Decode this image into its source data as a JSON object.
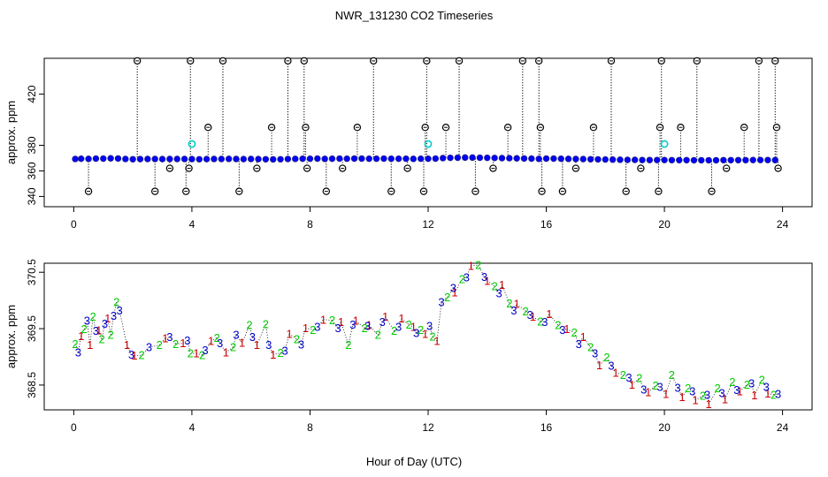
{
  "chart_data": [
    {
      "type": "scatter",
      "title": "NWR_131230  CO2 Timeseries",
      "xlabel": "",
      "ylabel": "approx. ppm",
      "xlim": [
        -1,
        25
      ],
      "ylim": [
        332,
        448
      ],
      "x_ticks": [
        "0",
        "4",
        "8",
        "12",
        "16",
        "20",
        "24"
      ],
      "x_tick_values": [
        0,
        4,
        8,
        12,
        16,
        20,
        24
      ],
      "y_ticks": [
        "340",
        "360",
        "380",
        "420"
      ],
      "y_tick_values": [
        340,
        360,
        380,
        420
      ],
      "grid": false,
      "colors": {
        "main": "#0000ff",
        "main_edge": "#1a1a8a",
        "alternate": "#00cccc",
        "outlier": "#000000"
      },
      "series": [
        {
          "role": "main",
          "x": [
            0.05,
            0.25,
            0.5,
            0.75,
            1.0,
            1.25,
            1.5,
            1.75,
            2.0,
            2.25,
            2.5,
            2.75,
            3.0,
            3.25,
            3.5,
            3.75,
            4.0,
            4.25,
            4.5,
            4.75,
            5.0,
            5.25,
            5.5,
            5.75,
            6.0,
            6.25,
            6.5,
            6.75,
            7.0,
            7.25,
            7.5,
            7.75,
            8.0,
            8.25,
            8.5,
            8.75,
            9.0,
            9.25,
            9.5,
            9.75,
            10.0,
            10.25,
            10.5,
            10.75,
            11.0,
            11.25,
            11.5,
            11.75,
            12.0,
            12.25,
            12.5,
            12.75,
            13.0,
            13.25,
            13.5,
            13.75,
            14.0,
            14.25,
            14.5,
            14.75,
            15.0,
            15.25,
            15.5,
            15.75,
            16.0,
            16.25,
            16.5,
            16.75,
            17.0,
            17.25,
            17.5,
            17.75,
            18.0,
            18.25,
            18.5,
            18.75,
            19.0,
            19.25,
            19.5,
            19.75,
            20.0,
            20.25,
            20.5,
            20.75,
            21.0,
            21.25,
            21.5,
            21.75,
            22.0,
            22.25,
            22.5,
            22.75,
            23.0,
            23.25,
            23.5,
            23.75
          ],
          "y": [
            369.3,
            369.5,
            369.4,
            369.6,
            369.6,
            369.8,
            369.7,
            369.3,
            369.1,
            369.2,
            369.3,
            369.3,
            369.2,
            369.3,
            369.3,
            369.3,
            369.2,
            369.1,
            369.2,
            369.3,
            369.3,
            369.4,
            369.3,
            369.2,
            369.3,
            369.2,
            369.1,
            369.0,
            369.1,
            369.3,
            369.4,
            369.5,
            369.5,
            369.6,
            369.4,
            369.5,
            369.6,
            369.5,
            369.6,
            369.6,
            369.5,
            369.5,
            369.6,
            369.5,
            369.5,
            369.5,
            369.4,
            369.5,
            369.5,
            369.6,
            370.0,
            370.2,
            370.3,
            370.4,
            370.4,
            370.3,
            370.2,
            370.1,
            370.0,
            369.9,
            369.8,
            369.7,
            369.6,
            369.4,
            369.6,
            369.6,
            369.5,
            369.4,
            369.3,
            369.2,
            369.1,
            369.0,
            368.9,
            368.8,
            368.7,
            368.6,
            368.6,
            368.5,
            368.5,
            368.5,
            368.5,
            368.4,
            368.4,
            368.4,
            368.3,
            368.3,
            368.3,
            368.3,
            368.4,
            368.4,
            368.4,
            368.4,
            368.5,
            368.5,
            368.5,
            368.4
          ]
        },
        {
          "role": "alternate",
          "x": [
            4.0,
            12.0,
            20.0
          ],
          "y": [
            381,
            381,
            381
          ]
        },
        {
          "role": "outlier",
          "x": [
            0.5,
            2.15,
            2.75,
            3.25,
            3.8,
            3.9,
            3.95,
            4.55,
            5.05,
            5.6,
            6.2,
            6.7,
            7.25,
            7.8,
            7.85,
            7.9,
            8.55,
            9.1,
            9.6,
            10.15,
            10.75,
            11.3,
            11.85,
            11.9,
            11.95,
            12.6,
            13.05,
            13.6,
            14.2,
            14.7,
            15.2,
            15.75,
            15.8,
            15.85,
            16.55,
            17.0,
            17.6,
            18.2,
            18.7,
            19.2,
            19.8,
            19.85,
            19.9,
            20.55,
            21.1,
            21.6,
            22.1,
            22.7,
            23.2,
            23.75,
            23.8,
            23.85
          ],
          "y": [
            344,
            446,
            344,
            362,
            344,
            362,
            446,
            394,
            446,
            344,
            362,
            394,
            446,
            446,
            394,
            362,
            344,
            362,
            394,
            446,
            344,
            362,
            344,
            394,
            446,
            394,
            446,
            344,
            362,
            394,
            446,
            446,
            394,
            344,
            344,
            362,
            394,
            446,
            344,
            362,
            344,
            394,
            446,
            394,
            446,
            344,
            362,
            394,
            446,
            446,
            394,
            362
          ]
        }
      ]
    },
    {
      "type": "scatter",
      "title": "",
      "xlabel": "Hour of Day (UTC)",
      "ylabel": "approx. ppm",
      "xlim": [
        -1,
        25
      ],
      "ylim": [
        368.06,
        370.66
      ],
      "x_ticks": [
        "0",
        "4",
        "8",
        "12",
        "16",
        "20",
        "24"
      ],
      "x_tick_values": [
        0,
        4,
        8,
        12,
        16,
        20,
        24
      ],
      "y_ticks": [
        "368.5",
        "369.5",
        "370.5"
      ],
      "y_tick_values": [
        368.5,
        369.5,
        370.5
      ],
      "grid": false,
      "colors": {
        "1": "#cc0000",
        "2": "#00cc00",
        "3": "#0000cc",
        "connector": "#000000"
      },
      "series": [
        {
          "marker": "1",
          "x": [
            0.25,
            0.55,
            0.85,
            1.15,
            1.8,
            2.05,
            3.1,
            3.7,
            4.15,
            4.65,
            5.15,
            5.7,
            6.2,
            6.75,
            7.3,
            7.85,
            8.45,
            9.05,
            9.55,
            10.0,
            10.55,
            11.1,
            11.5,
            11.9,
            12.3,
            12.9,
            13.45,
            14.0,
            14.5,
            15.0,
            15.55,
            16.1,
            16.7,
            17.25,
            17.8,
            18.35,
            18.9,
            19.45,
            20.05,
            20.6,
            21.05,
            21.5,
            22.05,
            22.55,
            23.05,
            23.5
          ],
          "y": [
            369.37,
            369.21,
            369.47,
            369.68,
            369.21,
            369.02,
            369.33,
            369.24,
            369.06,
            369.28,
            369.08,
            369.25,
            369.21,
            369.04,
            369.41,
            369.51,
            369.66,
            369.62,
            369.64,
            369.56,
            369.71,
            369.68,
            369.53,
            369.41,
            369.28,
            370.14,
            370.61,
            370.35,
            370.28,
            369.94,
            369.71,
            369.76,
            369.49,
            369.35,
            368.85,
            368.72,
            368.51,
            368.37,
            368.34,
            368.29,
            368.23,
            368.16,
            368.25,
            368.39,
            368.32,
            368.35
          ]
        },
        {
          "marker": "2",
          "x": [
            0.05,
            0.35,
            0.65,
            0.95,
            1.25,
            1.45,
            2.3,
            2.9,
            3.45,
            3.95,
            4.35,
            4.85,
            5.4,
            5.95,
            6.5,
            7.0,
            7.55,
            8.1,
            8.75,
            9.3,
            9.85,
            10.3,
            10.85,
            11.35,
            11.75,
            12.15,
            12.65,
            13.15,
            13.7,
            14.25,
            14.75,
            15.3,
            15.8,
            16.4,
            16.95,
            17.5,
            18.05,
            18.6,
            19.15,
            19.7,
            20.25,
            20.8,
            21.3,
            21.8,
            22.3,
            22.8,
            23.3,
            23.7
          ],
          "y": [
            369.23,
            369.49,
            369.71,
            369.31,
            369.39,
            369.97,
            369.03,
            369.21,
            369.23,
            369.06,
            369.03,
            369.34,
            369.17,
            369.56,
            369.58,
            369.07,
            369.31,
            369.48,
            369.65,
            369.21,
            369.51,
            369.39,
            369.46,
            369.57,
            369.48,
            369.36,
            370.06,
            370.38,
            370.63,
            370.25,
            369.95,
            369.81,
            369.63,
            369.56,
            369.43,
            369.17,
            368.99,
            368.68,
            368.62,
            368.49,
            368.68,
            368.44,
            368.31,
            368.44,
            368.55,
            368.51,
            368.59,
            368.33
          ]
        },
        {
          "marker": "3",
          "x": [
            0.15,
            0.45,
            0.75,
            1.05,
            1.35,
            1.55,
            1.95,
            2.55,
            3.25,
            3.85,
            4.45,
            4.95,
            5.5,
            6.05,
            6.6,
            7.15,
            7.7,
            8.25,
            8.95,
            9.45,
            9.95,
            10.45,
            11.0,
            11.6,
            12.05,
            12.45,
            12.85,
            13.3,
            13.9,
            14.4,
            14.9,
            15.45,
            15.95,
            16.55,
            17.1,
            17.65,
            18.2,
            18.8,
            19.3,
            19.85,
            20.45,
            20.95,
            21.45,
            21.95,
            22.45,
            22.95,
            23.45,
            23.85
          ],
          "y": [
            369.08,
            369.64,
            369.46,
            369.59,
            369.73,
            369.82,
            369.04,
            369.17,
            369.35,
            369.29,
            369.12,
            369.24,
            369.39,
            369.35,
            369.21,
            369.11,
            369.22,
            369.53,
            369.51,
            369.57,
            369.55,
            369.62,
            369.53,
            369.42,
            369.55,
            369.97,
            370.22,
            370.41,
            370.42,
            370.13,
            369.82,
            369.74,
            369.62,
            369.48,
            369.23,
            369.06,
            368.84,
            368.63,
            368.42,
            368.47,
            368.45,
            368.39,
            368.33,
            368.36,
            368.41,
            368.53,
            368.47,
            368.34
          ]
        }
      ]
    }
  ]
}
